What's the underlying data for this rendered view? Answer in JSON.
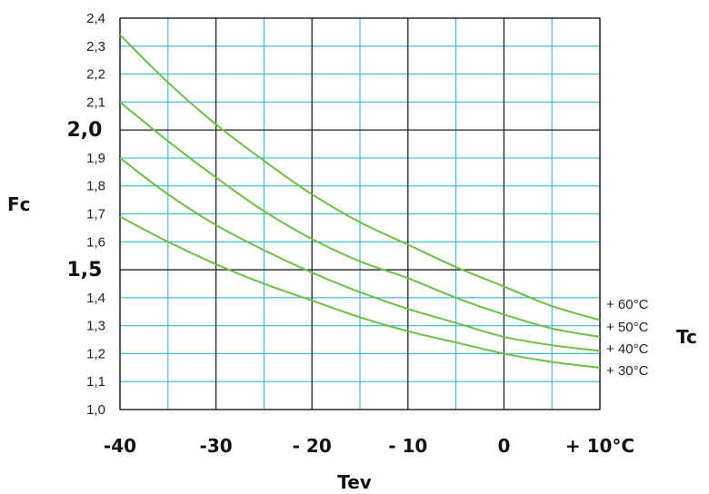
{
  "chart_data": {
    "type": "line",
    "xlabel": "Tev",
    "ylabel": "Fc",
    "legend_title": "Tc",
    "xlim": [
      -40,
      10
    ],
    "ylim": [
      1.0,
      2.4
    ],
    "grid": true,
    "legend_placement": "right",
    "colors": {
      "major_grid": "#222222",
      "minor_grid": "#3ab4d6",
      "curve": "#6cbf45"
    },
    "x_ticks": [
      {
        "value": -40,
        "label": "-40"
      },
      {
        "value": -30,
        "label": "-30"
      },
      {
        "value": -20,
        "label": "- 20"
      },
      {
        "value": -10,
        "label": "- 10"
      },
      {
        "value": 0,
        "label": "0"
      },
      {
        "value": 10,
        "label": "+ 10°C"
      }
    ],
    "y_ticks": [
      {
        "value": 1.0,
        "label": "1,0",
        "major": false
      },
      {
        "value": 1.1,
        "label": "1,1",
        "major": false
      },
      {
        "value": 1.2,
        "label": "1,2",
        "major": false
      },
      {
        "value": 1.3,
        "label": "1,3",
        "major": false
      },
      {
        "value": 1.4,
        "label": "1,4",
        "major": false
      },
      {
        "value": 1.5,
        "label": "1,5",
        "major": true
      },
      {
        "value": 1.6,
        "label": "1,6",
        "major": false
      },
      {
        "value": 1.7,
        "label": "1,7",
        "major": false
      },
      {
        "value": 1.8,
        "label": "1,8",
        "major": false
      },
      {
        "value": 1.9,
        "label": "1,9",
        "major": false
      },
      {
        "value": 2.0,
        "label": "2,0",
        "major": true
      },
      {
        "value": 2.1,
        "label": "2,1",
        "major": false
      },
      {
        "value": 2.2,
        "label": "2,2",
        "major": false
      },
      {
        "value": 2.3,
        "label": "2,3",
        "major": false
      },
      {
        "value": 2.4,
        "label": "2,4",
        "major": false
      }
    ],
    "x": [
      -40,
      -35,
      -30,
      -25,
      -20,
      -15,
      -10,
      -5,
      0,
      5,
      10
    ],
    "series": [
      {
        "name": "+ 60°C",
        "values": [
          2.34,
          2.17,
          2.02,
          1.89,
          1.77,
          1.67,
          1.59,
          1.51,
          1.44,
          1.37,
          1.32
        ]
      },
      {
        "name": "+ 50°C",
        "values": [
          2.1,
          1.96,
          1.83,
          1.71,
          1.61,
          1.53,
          1.47,
          1.4,
          1.34,
          1.29,
          1.26
        ]
      },
      {
        "name": "+ 40°C",
        "values": [
          1.9,
          1.77,
          1.66,
          1.57,
          1.49,
          1.42,
          1.36,
          1.31,
          1.26,
          1.23,
          1.21
        ]
      },
      {
        "name": "+ 30°C",
        "values": [
          1.69,
          1.6,
          1.52,
          1.45,
          1.39,
          1.33,
          1.28,
          1.24,
          1.2,
          1.17,
          1.15
        ]
      }
    ]
  }
}
